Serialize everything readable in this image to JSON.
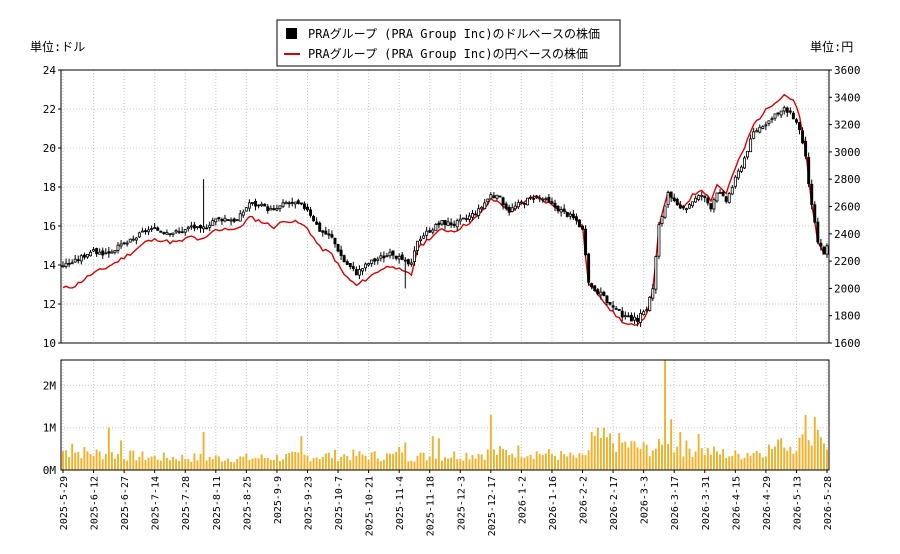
{
  "chart_data": {
    "type": "candlestick+line+bar",
    "legend": {
      "placement": "top-center",
      "entries": [
        {
          "label": "PRAグループ (PRA Group Inc)のドルベースの株価",
          "color": "#000000",
          "marker": "square"
        },
        {
          "label": "PRAグループ (PRA Group Inc)の円ベースの株価",
          "color": "#dd0000",
          "marker": "line"
        }
      ]
    },
    "left_axis": {
      "unit_label": "単位:ドル",
      "ylim": [
        10,
        24
      ],
      "ticks": [
        "10",
        "12",
        "14",
        "16",
        "18",
        "20",
        "22",
        "24"
      ]
    },
    "right_axis": {
      "unit_label": "単位:円",
      "ylim": [
        1600,
        3600
      ],
      "ticks": [
        "1600",
        "1800",
        "2000",
        "2200",
        "2400",
        "2600",
        "2800",
        "3000",
        "3200",
        "3400",
        "3600"
      ]
    },
    "volume_axis": {
      "ylim": [
        0,
        2600000
      ],
      "ticks": [
        "0M",
        "1M",
        "2M"
      ]
    },
    "x_ticks": [
      "2025-5-29",
      "2025-6-12",
      "2025-6-27",
      "2025-7-14",
      "2025-7-28",
      "2025-8-11",
      "2025-8-25",
      "2025-9-9",
      "2025-9-23",
      "2025-10-7",
      "2025-10-21",
      "2025-11-4",
      "2025-11-18",
      "2025-12-3",
      "2025-12-17",
      "2026-1-2",
      "2026-1-16",
      "2026-2-2",
      "2026-2-17",
      "2026-3-3",
      "2026-3-17",
      "2026-3-31",
      "2026-4-15",
      "2026-4-29",
      "2026-5-13",
      "2026-5-28"
    ],
    "grid": true,
    "num_days": 251,
    "usd_close_keypoints": [
      [
        0,
        14.0
      ],
      [
        4,
        14.2
      ],
      [
        9,
        14.7
      ],
      [
        14,
        14.6
      ],
      [
        18,
        14.9
      ],
      [
        23,
        15.3
      ],
      [
        27,
        15.8
      ],
      [
        31,
        15.8
      ],
      [
        35,
        15.7
      ],
      [
        38,
        15.7
      ],
      [
        40,
        15.8
      ],
      [
        42,
        16.0
      ],
      [
        45,
        15.8
      ],
      [
        47,
        16.0
      ],
      [
        49,
        16.3
      ],
      [
        53,
        16.4
      ],
      [
        57,
        16.3
      ],
      [
        61,
        17.2
      ],
      [
        65,
        17.0
      ],
      [
        69,
        16.8
      ],
      [
        73,
        17.2
      ],
      [
        77,
        17.1
      ],
      [
        80,
        16.9
      ],
      [
        84,
        15.8
      ],
      [
        88,
        15.4
      ],
      [
        92,
        14.2
      ],
      [
        96,
        13.6
      ],
      [
        100,
        14.1
      ],
      [
        104,
        14.4
      ],
      [
        108,
        14.6
      ],
      [
        111,
        14.2
      ],
      [
        114,
        14.0
      ],
      [
        116,
        15.3
      ],
      [
        120,
        15.8
      ],
      [
        124,
        16.2
      ],
      [
        128,
        16.1
      ],
      [
        132,
        16.4
      ],
      [
        136,
        16.8
      ],
      [
        140,
        17.6
      ],
      [
        143,
        17.4
      ],
      [
        146,
        16.8
      ],
      [
        150,
        17.2
      ],
      [
        154,
        17.5
      ],
      [
        157,
        17.4
      ],
      [
        161,
        17.0
      ],
      [
        165,
        16.6
      ],
      [
        168,
        16.3
      ],
      [
        170,
        15.8
      ],
      [
        172,
        13.0
      ],
      [
        176,
        12.5
      ],
      [
        180,
        11.8
      ],
      [
        184,
        11.3
      ],
      [
        188,
        11.2
      ],
      [
        191,
        11.8
      ],
      [
        193,
        12.8
      ],
      [
        195,
        16.0
      ],
      [
        198,
        17.6
      ],
      [
        201,
        17.0
      ],
      [
        203,
        16.8
      ],
      [
        206,
        17.3
      ],
      [
        209,
        17.6
      ],
      [
        212,
        17.0
      ],
      [
        214,
        17.8
      ],
      [
        217,
        17.3
      ],
      [
        220,
        18.4
      ],
      [
        223,
        19.5
      ],
      [
        226,
        20.8
      ],
      [
        229,
        21.2
      ],
      [
        232,
        21.5
      ],
      [
        236,
        22.0
      ],
      [
        239,
        21.6
      ],
      [
        241,
        21.0
      ],
      [
        243,
        19.5
      ],
      [
        245,
        17.0
      ],
      [
        247,
        15.2
      ],
      [
        249,
        14.6
      ],
      [
        251,
        15.3
      ]
    ],
    "jpy_close_keypoints": [
      [
        0,
        2000
      ],
      [
        4,
        2020
      ],
      [
        9,
        2100
      ],
      [
        14,
        2150
      ],
      [
        18,
        2200
      ],
      [
        23,
        2270
      ],
      [
        27,
        2340
      ],
      [
        31,
        2360
      ],
      [
        35,
        2340
      ],
      [
        38,
        2340
      ],
      [
        40,
        2360
      ],
      [
        42,
        2380
      ],
      [
        45,
        2350
      ],
      [
        47,
        2370
      ],
      [
        49,
        2420
      ],
      [
        53,
        2440
      ],
      [
        57,
        2430
      ],
      [
        61,
        2520
      ],
      [
        65,
        2490
      ],
      [
        69,
        2450
      ],
      [
        73,
        2500
      ],
      [
        77,
        2480
      ],
      [
        80,
        2440
      ],
      [
        84,
        2300
      ],
      [
        88,
        2250
      ],
      [
        92,
        2100
      ],
      [
        96,
        2020
      ],
      [
        100,
        2080
      ],
      [
        104,
        2140
      ],
      [
        108,
        2170
      ],
      [
        111,
        2120
      ],
      [
        114,
        2100
      ],
      [
        116,
        2290
      ],
      [
        120,
        2370
      ],
      [
        124,
        2430
      ],
      [
        128,
        2420
      ],
      [
        132,
        2470
      ],
      [
        136,
        2530
      ],
      [
        140,
        2650
      ],
      [
        143,
        2630
      ],
      [
        146,
        2560
      ],
      [
        150,
        2610
      ],
      [
        154,
        2680
      ],
      [
        157,
        2650
      ],
      [
        161,
        2600
      ],
      [
        165,
        2560
      ],
      [
        168,
        2510
      ],
      [
        170,
        2450
      ],
      [
        172,
        2030
      ],
      [
        176,
        1940
      ],
      [
        180,
        1820
      ],
      [
        184,
        1740
      ],
      [
        188,
        1720
      ],
      [
        191,
        1820
      ],
      [
        193,
        1980
      ],
      [
        195,
        2450
      ],
      [
        198,
        2700
      ],
      [
        201,
        2620
      ],
      [
        203,
        2600
      ],
      [
        206,
        2680
      ],
      [
        209,
        2730
      ],
      [
        212,
        2650
      ],
      [
        214,
        2760
      ],
      [
        217,
        2700
      ],
      [
        220,
        2880
      ],
      [
        223,
        3030
      ],
      [
        226,
        3200
      ],
      [
        229,
        3280
      ],
      [
        232,
        3350
      ],
      [
        236,
        3420
      ],
      [
        239,
        3380
      ],
      [
        241,
        3260
      ],
      [
        243,
        3000
      ],
      [
        245,
        2620
      ],
      [
        247,
        2330
      ],
      [
        249,
        2260
      ],
      [
        251,
        2380
      ]
    ],
    "volume_profile": [
      [
        0,
        0.45
      ],
      [
        30,
        0.3
      ],
      [
        60,
        0.28
      ],
      [
        90,
        0.35
      ],
      [
        120,
        0.32
      ],
      [
        150,
        0.45
      ],
      [
        170,
        0.28
      ],
      [
        175,
        0.75
      ],
      [
        190,
        0.5
      ],
      [
        200,
        0.55
      ],
      [
        220,
        0.35
      ],
      [
        245,
        0.7
      ],
      [
        251,
        0.6
      ]
    ],
    "volume_spikes": [
      [
        3,
        0.62
      ],
      [
        15,
        1.0
      ],
      [
        19,
        0.7
      ],
      [
        46,
        0.9
      ],
      [
        78,
        0.8
      ],
      [
        110,
        0.55
      ],
      [
        112,
        0.65
      ],
      [
        121,
        0.8
      ],
      [
        123,
        0.75
      ],
      [
        140,
        1.3
      ],
      [
        173,
        0.9
      ],
      [
        197,
        2.6
      ],
      [
        199,
        1.2
      ],
      [
        202,
        0.9
      ],
      [
        208,
        0.85
      ],
      [
        235,
        0.75
      ],
      [
        243,
        1.3
      ],
      [
        246,
        1.25
      ],
      [
        247,
        0.95
      ],
      [
        251,
        0.8
      ]
    ]
  }
}
